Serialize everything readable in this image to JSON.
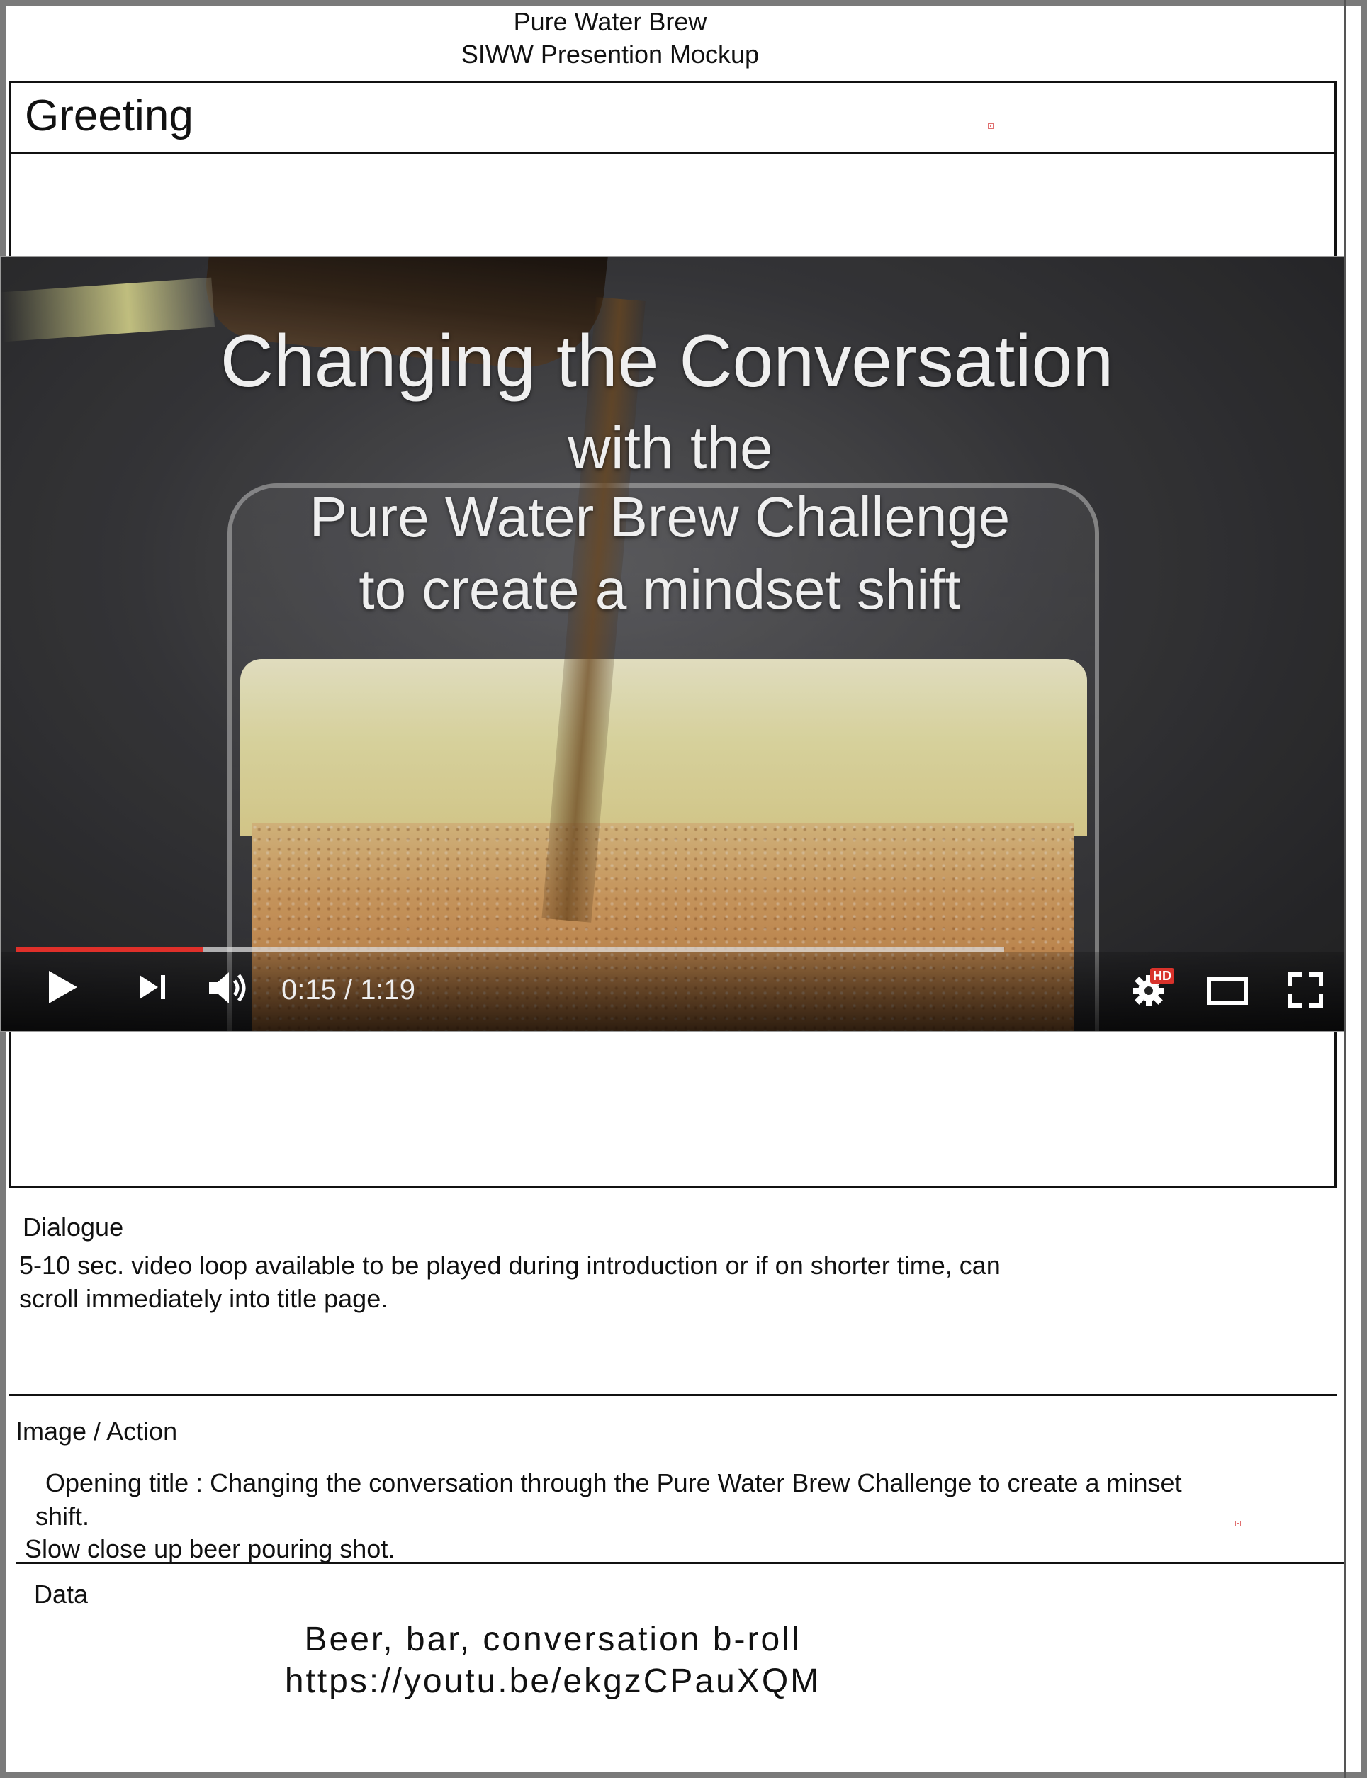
{
  "header": {
    "brand": "Pure Water Brew",
    "subtitle": "SIWW Presention Mockup"
  },
  "greeting": {
    "label": "Greeting"
  },
  "video": {
    "title_lines": [
      "Changing the Conversation",
      "with the",
      "Pure  Water Brew Challenge",
      "to create a mindset shift"
    ],
    "time_display": "0:15 / 1:19",
    "progress_fraction": 0.19,
    "hd_badge": "HD",
    "accent_color": "#e0302a",
    "icons": [
      "play-icon",
      "next-icon",
      "volume-icon",
      "settings-icon",
      "theater-mode-icon",
      "fullscreen-icon"
    ]
  },
  "dialogue": {
    "label": "Dialogue",
    "lines": [
      "5-10 sec. video loop available to be played during introduction or if on shorter time, can",
      "scroll immediately into title page."
    ]
  },
  "image_action": {
    "label": "Image / Action",
    "lines": [
      "Opening title : Changing the conversation through the Pure Water Brew Challenge to create a minset",
      "shift.",
      "Slow  close up beer pouring shot."
    ]
  },
  "data_section": {
    "label": "Data",
    "lines": [
      "Beer, bar, conversation b-roll",
      "https://youtu.be/ekgzCPauXQM"
    ]
  }
}
